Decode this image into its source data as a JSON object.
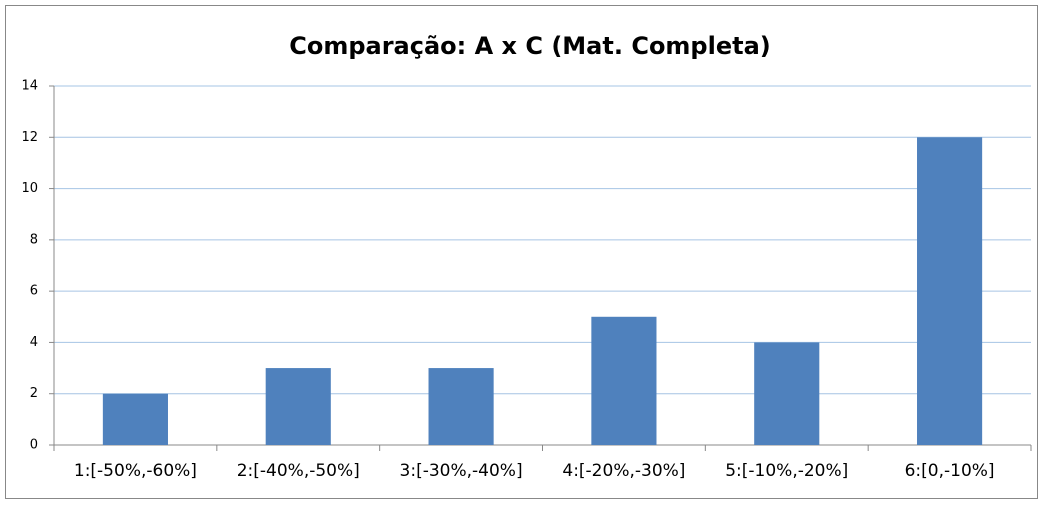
{
  "chart_data": {
    "type": "bar",
    "title": "Comparação: A x C (Mat. Completa)",
    "categories": [
      "1:[-50%,-60%]",
      "2:[-40%,-50%]",
      "3:[-30%,-40%]",
      "4:[-20%,-30%]",
      "5:[-10%,-20%]",
      "6:[0,-10%]"
    ],
    "values": [
      2,
      3,
      3,
      5,
      4,
      12
    ],
    "color": "#4f81bd",
    "ylim": [
      0,
      14
    ],
    "yticks": [
      0,
      2,
      4,
      6,
      8,
      10,
      12,
      14
    ],
    "grid": true
  }
}
